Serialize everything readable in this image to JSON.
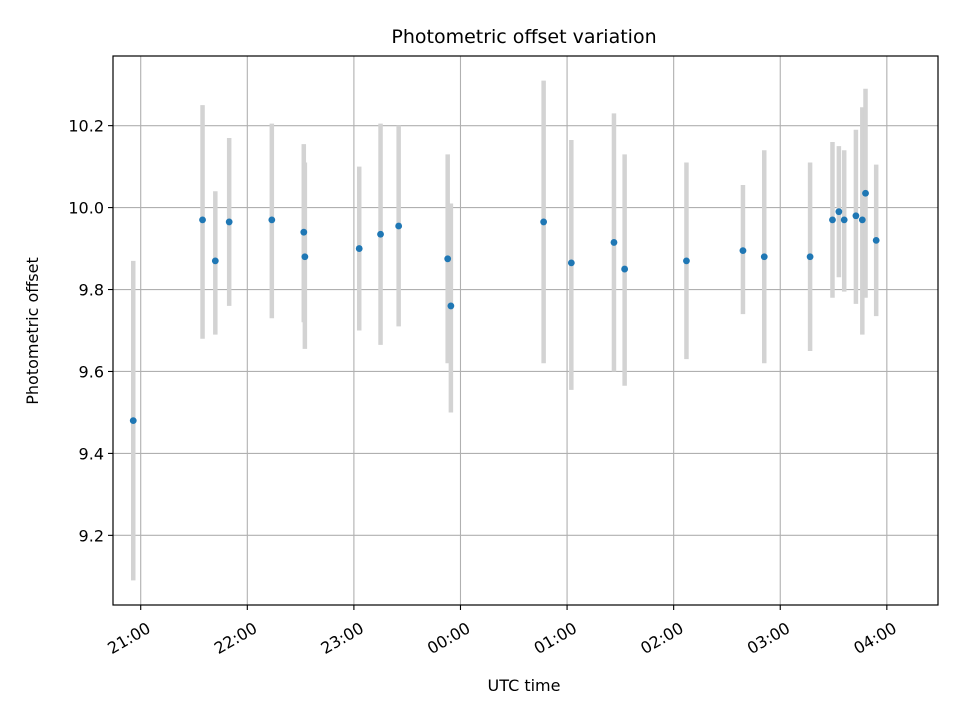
{
  "chart_data": {
    "type": "scatter",
    "title": "Photometric offset variation",
    "xlabel": "UTC time",
    "ylabel": "Photometric offset",
    "x_unit": "hours UTC (values above 24 are after midnight)",
    "xlim": [
      20.74,
      28.48
    ],
    "ylim": [
      9.03,
      10.37
    ],
    "x_ticks": [
      {
        "value": 21,
        "label": "21:00"
      },
      {
        "value": 22,
        "label": "22:00"
      },
      {
        "value": 23,
        "label": "23:00"
      },
      {
        "value": 24,
        "label": "00:00"
      },
      {
        "value": 25,
        "label": "01:00"
      },
      {
        "value": 26,
        "label": "02:00"
      },
      {
        "value": 27,
        "label": "03:00"
      },
      {
        "value": 28,
        "label": "04:00"
      }
    ],
    "y_ticks": [
      {
        "value": 9.2,
        "label": "9.2"
      },
      {
        "value": 9.4,
        "label": "9.4"
      },
      {
        "value": 9.6,
        "label": "9.6"
      },
      {
        "value": 9.8,
        "label": "9.8"
      },
      {
        "value": 10.0,
        "label": "10.0"
      },
      {
        "value": 10.2,
        "label": "10.2"
      }
    ],
    "grid": true,
    "point_color": "#1f77b4",
    "errorbar_color": "#d3d3d3",
    "points": [
      {
        "x": 20.93,
        "y": 9.48,
        "low": 9.09,
        "high": 9.87
      },
      {
        "x": 21.58,
        "y": 9.97,
        "low": 9.68,
        "high": 10.25
      },
      {
        "x": 21.7,
        "y": 9.87,
        "low": 9.69,
        "high": 10.04
      },
      {
        "x": 21.83,
        "y": 9.965,
        "low": 9.76,
        "high": 10.17
      },
      {
        "x": 22.23,
        "y": 9.97,
        "low": 9.73,
        "high": 10.205
      },
      {
        "x": 22.53,
        "y": 9.94,
        "low": 9.72,
        "high": 10.155
      },
      {
        "x": 22.54,
        "y": 9.88,
        "low": 9.655,
        "high": 10.11
      },
      {
        "x": 23.05,
        "y": 9.9,
        "low": 9.7,
        "high": 10.1
      },
      {
        "x": 23.25,
        "y": 9.935,
        "low": 9.665,
        "high": 10.205
      },
      {
        "x": 23.42,
        "y": 9.955,
        "low": 9.71,
        "high": 10.2
      },
      {
        "x": 23.88,
        "y": 9.875,
        "low": 9.62,
        "high": 10.13
      },
      {
        "x": 23.91,
        "y": 9.76,
        "low": 9.5,
        "high": 10.01
      },
      {
        "x": 24.78,
        "y": 9.965,
        "low": 9.62,
        "high": 10.31
      },
      {
        "x": 25.04,
        "y": 9.865,
        "low": 9.555,
        "high": 10.165
      },
      {
        "x": 25.44,
        "y": 9.915,
        "low": 9.6,
        "high": 10.23
      },
      {
        "x": 25.54,
        "y": 9.85,
        "low": 9.565,
        "high": 10.13
      },
      {
        "x": 26.12,
        "y": 9.87,
        "low": 9.63,
        "high": 10.11
      },
      {
        "x": 26.65,
        "y": 9.895,
        "low": 9.74,
        "high": 10.055
      },
      {
        "x": 26.85,
        "y": 9.88,
        "low": 9.62,
        "high": 10.14
      },
      {
        "x": 27.28,
        "y": 9.88,
        "low": 9.65,
        "high": 10.11
      },
      {
        "x": 27.49,
        "y": 9.97,
        "low": 9.78,
        "high": 10.16
      },
      {
        "x": 27.55,
        "y": 9.99,
        "low": 9.83,
        "high": 10.15
      },
      {
        "x": 27.6,
        "y": 9.97,
        "low": 9.795,
        "high": 10.14
      },
      {
        "x": 27.71,
        "y": 9.98,
        "low": 9.765,
        "high": 10.19
      },
      {
        "x": 27.77,
        "y": 9.97,
        "low": 9.69,
        "high": 10.245
      },
      {
        "x": 27.8,
        "y": 10.035,
        "low": 9.78,
        "high": 10.29
      },
      {
        "x": 27.9,
        "y": 9.92,
        "low": 9.735,
        "high": 10.105
      }
    ]
  }
}
